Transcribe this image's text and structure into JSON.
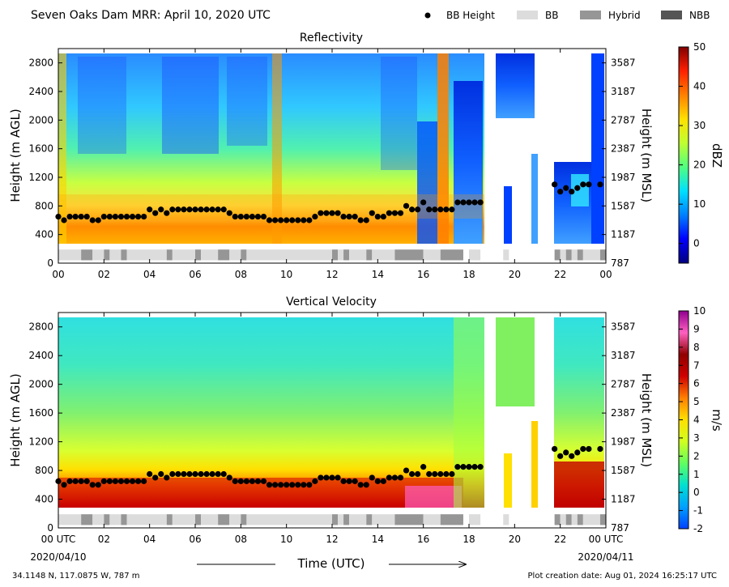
{
  "header": {
    "title": "Seven Oaks Dam MRR:  April 10, 2020 UTC",
    "legend": [
      {
        "label": "BB Height",
        "kind": "dot",
        "color": "#000000"
      },
      {
        "label": "BB",
        "kind": "bar",
        "color": "#dcdcdc"
      },
      {
        "label": "Hybrid",
        "kind": "bar",
        "color": "#969696"
      },
      {
        "label": "NBB",
        "kind": "bar",
        "color": "#555555"
      }
    ]
  },
  "footer": {
    "coords": "34.1148 N, 117.0875 W, 787 m",
    "created": "Plot creation date: Aug 01, 2024 16:25:17 UTC",
    "xaxis_title": "Time (UTC)",
    "start_date": "2020/04/10",
    "end_date": "2020/04/11"
  },
  "chart_data": [
    {
      "type": "heatmap",
      "title": "Reflectivity",
      "ylabel": "Height (m AGL)",
      "y2label": "Height (m MSL)",
      "colorbar_label": "dBZ",
      "colorbar_range": [
        -5,
        50
      ],
      "colorbar_ticks": [
        "0",
        "10",
        "20",
        "30",
        "40",
        "50"
      ],
      "colorbar_colors": [
        "#000080",
        "#0000ff",
        "#0080ff",
        "#00e0ff",
        "#50ff80",
        "#c0ff30",
        "#ffe000",
        "#ff8000",
        "#ff2000",
        "#800000"
      ],
      "xlim": [
        0,
        24
      ],
      "ylim": [
        0,
        3000
      ],
      "xticks": [
        "00",
        "02",
        "04",
        "06",
        "08",
        "10",
        "12",
        "14",
        "16",
        "18",
        "20",
        "22",
        "00"
      ],
      "yticks": [
        "0",
        "400",
        "800",
        "1200",
        "1600",
        "2000",
        "2400",
        "2800"
      ],
      "y2ticks": [
        "787",
        "1187",
        "1587",
        "1987",
        "2387",
        "2787",
        "3187",
        "3587"
      ]
    },
    {
      "type": "heatmap",
      "title": "Vertical Velocity",
      "ylabel": "Height (m AGL)",
      "y2label": "Height (m MSL)",
      "colorbar_label": "m/s",
      "colorbar_range": [
        -2,
        10
      ],
      "colorbar_ticks": [
        "-2",
        "-1",
        "0",
        "1",
        "2",
        "3",
        "4",
        "5",
        "6",
        "7",
        "8",
        "9",
        "10"
      ],
      "colorbar_colors": [
        "#0040ff",
        "#00a0ff",
        "#00e0d0",
        "#60ff60",
        "#d0ff20",
        "#ffe000",
        "#ff8000",
        "#d00000",
        "#900000",
        "#ff60c0",
        "#900090"
      ],
      "xlim": [
        0,
        24
      ],
      "ylim": [
        0,
        3000
      ],
      "xticks": [
        "00 UTC",
        "02",
        "04",
        "06",
        "08",
        "10",
        "12",
        "14",
        "16",
        "18",
        "20",
        "22",
        "00 UTC"
      ],
      "yticks": [
        "0",
        "400",
        "800",
        "1200",
        "1600",
        "2000",
        "2400",
        "2800"
      ],
      "y2ticks": [
        "787",
        "1187",
        "1587",
        "1987",
        "2387",
        "2787",
        "3187",
        "3587"
      ]
    }
  ],
  "bb_height": {
    "times": [
      0,
      0.25,
      0.5,
      0.75,
      1,
      1.25,
      1.5,
      1.75,
      2,
      2.25,
      2.5,
      2.75,
      3,
      3.25,
      3.5,
      3.75,
      4,
      4.25,
      4.5,
      4.75,
      5,
      5.25,
      5.5,
      5.75,
      6,
      6.25,
      6.5,
      6.75,
      7,
      7.25,
      7.5,
      7.75,
      8,
      8.25,
      8.5,
      8.75,
      9,
      9.25,
      9.5,
      9.75,
      10,
      10.25,
      10.5,
      10.75,
      11,
      11.25,
      11.5,
      11.75,
      12,
      12.25,
      12.5,
      12.75,
      13,
      13.25,
      13.5,
      13.75,
      14,
      14.25,
      14.5,
      14.75,
      15,
      15.25,
      15.5,
      15.75,
      16,
      16.25,
      16.5,
      16.75,
      17,
      17.25,
      17.5,
      17.75,
      18,
      18.25,
      18.5,
      21.75,
      22,
      22.25,
      22.5,
      22.75,
      23,
      23.25,
      23.75
    ],
    "heights": [
      650,
      600,
      650,
      650,
      650,
      650,
      600,
      600,
      650,
      650,
      650,
      650,
      650,
      650,
      650,
      650,
      750,
      700,
      750,
      700,
      750,
      750,
      750,
      750,
      750,
      750,
      750,
      750,
      750,
      750,
      700,
      650,
      650,
      650,
      650,
      650,
      650,
      600,
      600,
      600,
      600,
      600,
      600,
      600,
      600,
      650,
      700,
      700,
      700,
      700,
      650,
      650,
      650,
      600,
      600,
      700,
      650,
      650,
      700,
      700,
      700,
      800,
      750,
      750,
      850,
      750,
      750,
      750,
      750,
      750,
      850,
      850,
      850,
      850,
      850,
      1100,
      1000,
      1050,
      1000,
      1050,
      1100,
      1100,
      1100
    ]
  },
  "bb_type": [
    {
      "start": 0.0,
      "end": 1.0,
      "type": "BB"
    },
    {
      "start": 1.0,
      "end": 1.5,
      "type": "Hybrid"
    },
    {
      "start": 1.5,
      "end": 2.0,
      "type": "BB"
    },
    {
      "start": 2.0,
      "end": 2.25,
      "type": "Hybrid"
    },
    {
      "start": 2.25,
      "end": 2.75,
      "type": "BB"
    },
    {
      "start": 2.75,
      "end": 3.0,
      "type": "Hybrid"
    },
    {
      "start": 3.0,
      "end": 4.75,
      "type": "BB"
    },
    {
      "start": 4.75,
      "end": 5.0,
      "type": "Hybrid"
    },
    {
      "start": 5.0,
      "end": 6.0,
      "type": "BB"
    },
    {
      "start": 6.0,
      "end": 6.25,
      "type": "Hybrid"
    },
    {
      "start": 6.25,
      "end": 7.0,
      "type": "BB"
    },
    {
      "start": 7.0,
      "end": 7.5,
      "type": "Hybrid"
    },
    {
      "start": 7.5,
      "end": 8.0,
      "type": "BB"
    },
    {
      "start": 8.0,
      "end": 8.25,
      "type": "Hybrid"
    },
    {
      "start": 8.25,
      "end": 12.0,
      "type": "BB"
    },
    {
      "start": 12.0,
      "end": 12.25,
      "type": "Hybrid"
    },
    {
      "start": 12.25,
      "end": 12.5,
      "type": "BB"
    },
    {
      "start": 12.5,
      "end": 12.75,
      "type": "Hybrid"
    },
    {
      "start": 12.75,
      "end": 13.5,
      "type": "BB"
    },
    {
      "start": 13.5,
      "end": 13.75,
      "type": "Hybrid"
    },
    {
      "start": 13.75,
      "end": 14.75,
      "type": "BB"
    },
    {
      "start": 14.75,
      "end": 16.0,
      "type": "Hybrid"
    },
    {
      "start": 16.0,
      "end": 16.75,
      "type": "BB"
    },
    {
      "start": 16.75,
      "end": 17.75,
      "type": "Hybrid"
    },
    {
      "start": 18.0,
      "end": 18.5,
      "type": "BB"
    },
    {
      "start": 19.5,
      "end": 19.75,
      "type": "BB"
    },
    {
      "start": 21.75,
      "end": 22.0,
      "type": "Hybrid"
    },
    {
      "start": 22.0,
      "end": 22.25,
      "type": "BB"
    },
    {
      "start": 22.25,
      "end": 22.5,
      "type": "Hybrid"
    },
    {
      "start": 22.5,
      "end": 22.75,
      "type": "BB"
    },
    {
      "start": 22.75,
      "end": 23.0,
      "type": "Hybrid"
    },
    {
      "start": 23.0,
      "end": 23.75,
      "type": "BB"
    },
    {
      "start": 23.75,
      "end": 24.0,
      "type": "Hybrid"
    }
  ]
}
